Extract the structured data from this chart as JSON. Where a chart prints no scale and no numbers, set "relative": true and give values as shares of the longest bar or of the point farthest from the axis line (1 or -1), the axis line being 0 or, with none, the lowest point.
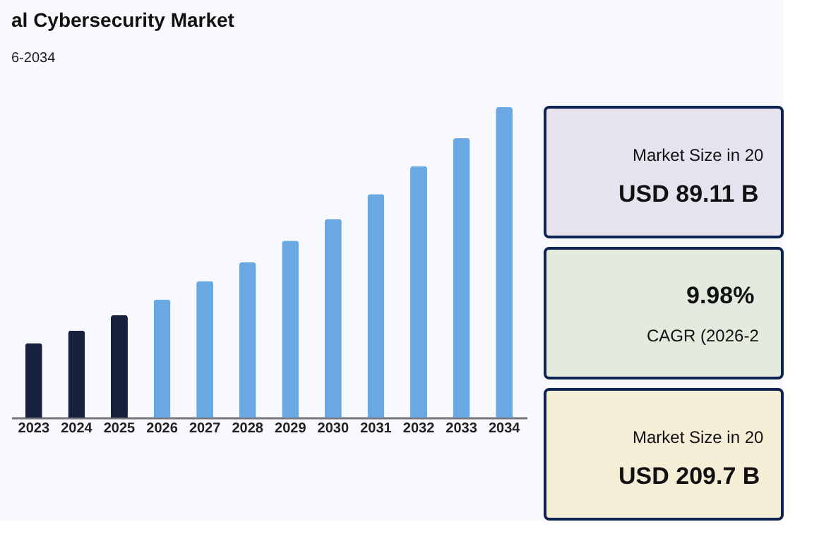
{
  "chart_data": [
    {
      "type": "bar",
      "title": "al Cybersecurity Market",
      "subtitle": "6-2034",
      "relative": true,
      "categories": [
        "2023",
        "2024",
        "2025",
        "2026",
        "2027",
        "2028",
        "2029",
        "2030",
        "2031",
        "2032",
        "2033",
        "2034"
      ],
      "values": [
        0.24,
        0.28,
        0.33,
        0.38,
        0.44,
        0.5,
        0.57,
        0.64,
        0.72,
        0.81,
        0.9,
        1.0
      ],
      "colors": [
        "#17213d",
        "#17213d",
        "#17213d",
        "#6aa8e3",
        "#6aa8e3",
        "#6aa8e3",
        "#6aa8e3",
        "#6aa8e3",
        "#6aa8e3",
        "#6aa8e3",
        "#6aa8e3",
        "#6aa8e3"
      ],
      "grid": false
    },
    {
      "type": "other",
      "title": "USD 89.11 B",
      "subtitle": "Market Size in 20"
    },
    {
      "type": "other",
      "title": "9.98%",
      "subtitle": "CAGR (2026-2"
    },
    {
      "type": "other",
      "title": "USD 209.7 B",
      "subtitle": "Market Size in 20"
    }
  ]
}
